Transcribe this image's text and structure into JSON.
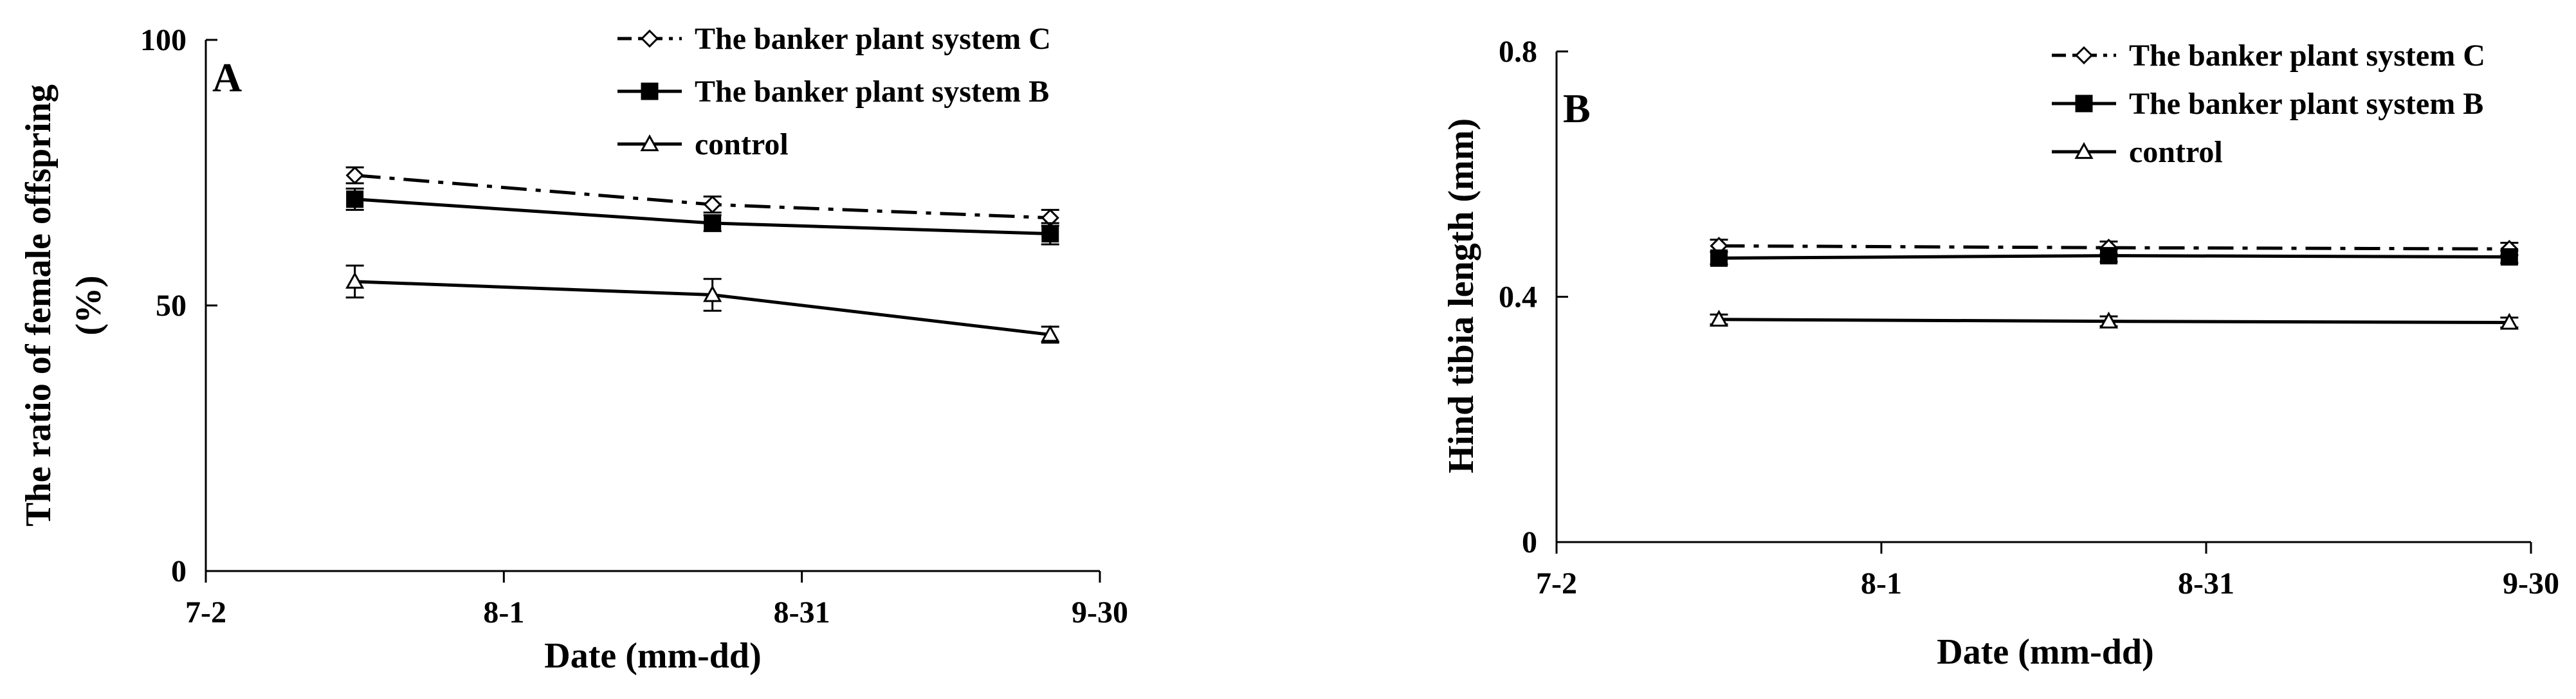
{
  "chart_data": [
    {
      "type": "line",
      "panel_label": "A",
      "xlabel": "Date (mm-dd)",
      "ylabel": [
        "The ratio of female offspring",
        "(%)"
      ],
      "x_ticks": [
        "7-2",
        "8-1",
        "8-31",
        "9-30"
      ],
      "xlim": [
        "7-2",
        "9-30"
      ],
      "ylim": [
        0,
        100
      ],
      "y_ticks": [
        "0",
        "50",
        "100"
      ],
      "y_tick_values": [
        0,
        50,
        100
      ],
      "legend_position": "top-right",
      "x": [
        "7-17",
        "8-22",
        "9-25"
      ],
      "series": [
        {
          "name": "The banker plant system C",
          "marker": "diamond-open",
          "line": "dashdot",
          "values": [
            74.5,
            69,
            66.5
          ],
          "errors": [
            1.5,
            1.5,
            1.5
          ]
        },
        {
          "name": "The banker plant system B",
          "marker": "square-filled",
          "line": "solid",
          "values": [
            70,
            65.5,
            63.5
          ],
          "errors": [
            2,
            1.5,
            2
          ]
        },
        {
          "name": "control",
          "marker": "triangle-open",
          "line": "solid",
          "values": [
            54.5,
            52,
            44.5
          ],
          "errors": [
            3,
            3,
            1.5
          ]
        }
      ]
    },
    {
      "type": "line",
      "panel_label": "B",
      "xlabel": "Date (mm-dd)",
      "ylabel": [
        "Hind tibia length (mm)"
      ],
      "x_ticks": [
        "7-2",
        "8-1",
        "8-31",
        "9-30"
      ],
      "xlim": [
        "7-2",
        "9-30"
      ],
      "ylim": [
        0,
        0.8
      ],
      "y_ticks": [
        "0",
        "0.4",
        "0.8"
      ],
      "y_tick_values": [
        0,
        0.4,
        0.8
      ],
      "legend_position": "top-right",
      "x": [
        "7-17",
        "8-22",
        "9-28"
      ],
      "series": [
        {
          "name": "The banker plant system C",
          "marker": "diamond-open",
          "line": "dashdot",
          "values": [
            0.483,
            0.48,
            0.478
          ],
          "errors": [
            0.01,
            0.01,
            0.01
          ]
        },
        {
          "name": "The banker plant system B",
          "marker": "square-filled",
          "line": "solid",
          "values": [
            0.463,
            0.467,
            0.465
          ],
          "errors": [
            0.01,
            0.01,
            0.01
          ]
        },
        {
          "name": "control",
          "marker": "triangle-open",
          "line": "solid",
          "values": [
            0.363,
            0.36,
            0.358
          ],
          "errors": [
            0.008,
            0.008,
            0.008
          ]
        }
      ]
    }
  ]
}
